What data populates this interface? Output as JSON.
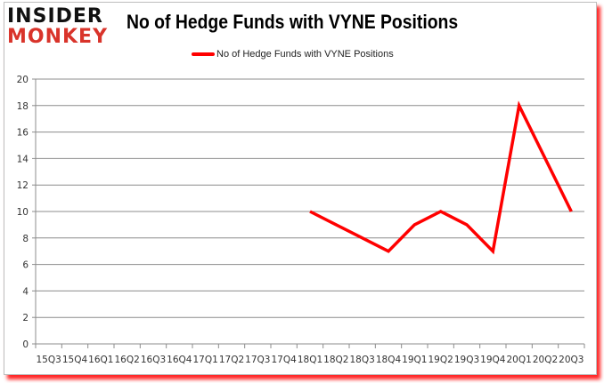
{
  "header": {
    "logo_top": "INSIDER",
    "logo_bottom": "MONKEY",
    "title": "No of Hedge Funds with VYNE Positions"
  },
  "legend": {
    "label": "No of Hedge Funds with VYNE Positions",
    "color": "#ff0000"
  },
  "colors": {
    "line": "#ff0000",
    "grid": "#8c8c8c",
    "logo_red": "#d9342b",
    "shadow": "#ff0000"
  },
  "chart_data": {
    "type": "line",
    "title": "No of Hedge Funds with VYNE Positions",
    "xlabel": "",
    "ylabel": "",
    "ylim": [
      0,
      20
    ],
    "yticks": [
      0,
      2,
      4,
      6,
      8,
      10,
      12,
      14,
      16,
      18,
      20
    ],
    "grid": true,
    "legend_position": "top",
    "categories": [
      "15Q3",
      "15Q4",
      "16Q1",
      "16Q2",
      "16Q3",
      "16Q4",
      "17Q1",
      "17Q2",
      "17Q3",
      "17Q4",
      "18Q1",
      "18Q2",
      "18Q3",
      "18Q4",
      "19Q1",
      "19Q2",
      "19Q3",
      "19Q4",
      "20Q1",
      "20Q2",
      "20Q3"
    ],
    "series": [
      {
        "name": "No of Hedge Funds with VYNE Positions",
        "color": "#ff0000",
        "values": [
          null,
          null,
          null,
          null,
          null,
          null,
          null,
          null,
          null,
          null,
          10,
          9,
          8,
          7,
          9,
          10,
          9,
          7,
          18,
          14,
          10
        ]
      }
    ]
  }
}
